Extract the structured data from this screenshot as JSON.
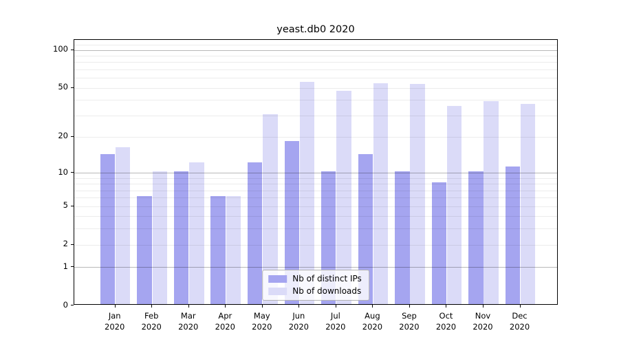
{
  "chart_data": {
    "type": "bar",
    "title": "yeast.db0 2020",
    "categories": [
      "Jan 2020",
      "Feb 2020",
      "Mar 2020",
      "Apr 2020",
      "May 2020",
      "Jun 2020",
      "Jul 2020",
      "Aug 2020",
      "Sep 2020",
      "Oct 2020",
      "Nov 2020",
      "Dec 2020"
    ],
    "series": [
      {
        "name": "Nb of distinct IPs",
        "color": "#a5a5f0",
        "values": [
          14,
          6,
          10,
          6,
          12,
          18,
          10,
          14,
          10,
          8,
          10,
          11
        ]
      },
      {
        "name": "Nb of downloads",
        "color": "#dbdbf8",
        "values": [
          16,
          10,
          12,
          6,
          30,
          54,
          46,
          53,
          52,
          35,
          38,
          36
        ]
      }
    ],
    "xlabel": "",
    "ylabel": "",
    "y_scale": "log10(value+1)",
    "ylim": [
      0,
      119
    ],
    "y_ticks": [
      0,
      1,
      2,
      5,
      10,
      20,
      50,
      100
    ],
    "y_major_gridlines": [
      1,
      10,
      100
    ],
    "y_minor_gridlines": [
      2,
      3,
      4,
      5,
      6,
      7,
      8,
      9,
      20,
      30,
      40,
      50,
      60,
      70,
      80,
      90,
      110
    ],
    "grid": true,
    "legend_position": "lower center"
  },
  "colors": {
    "major_grid": "rgba(0,0,0,0.28)",
    "minor_grid": "rgba(0,0,0,0.075)",
    "spine": "#000000",
    "background": "#ffffff"
  }
}
